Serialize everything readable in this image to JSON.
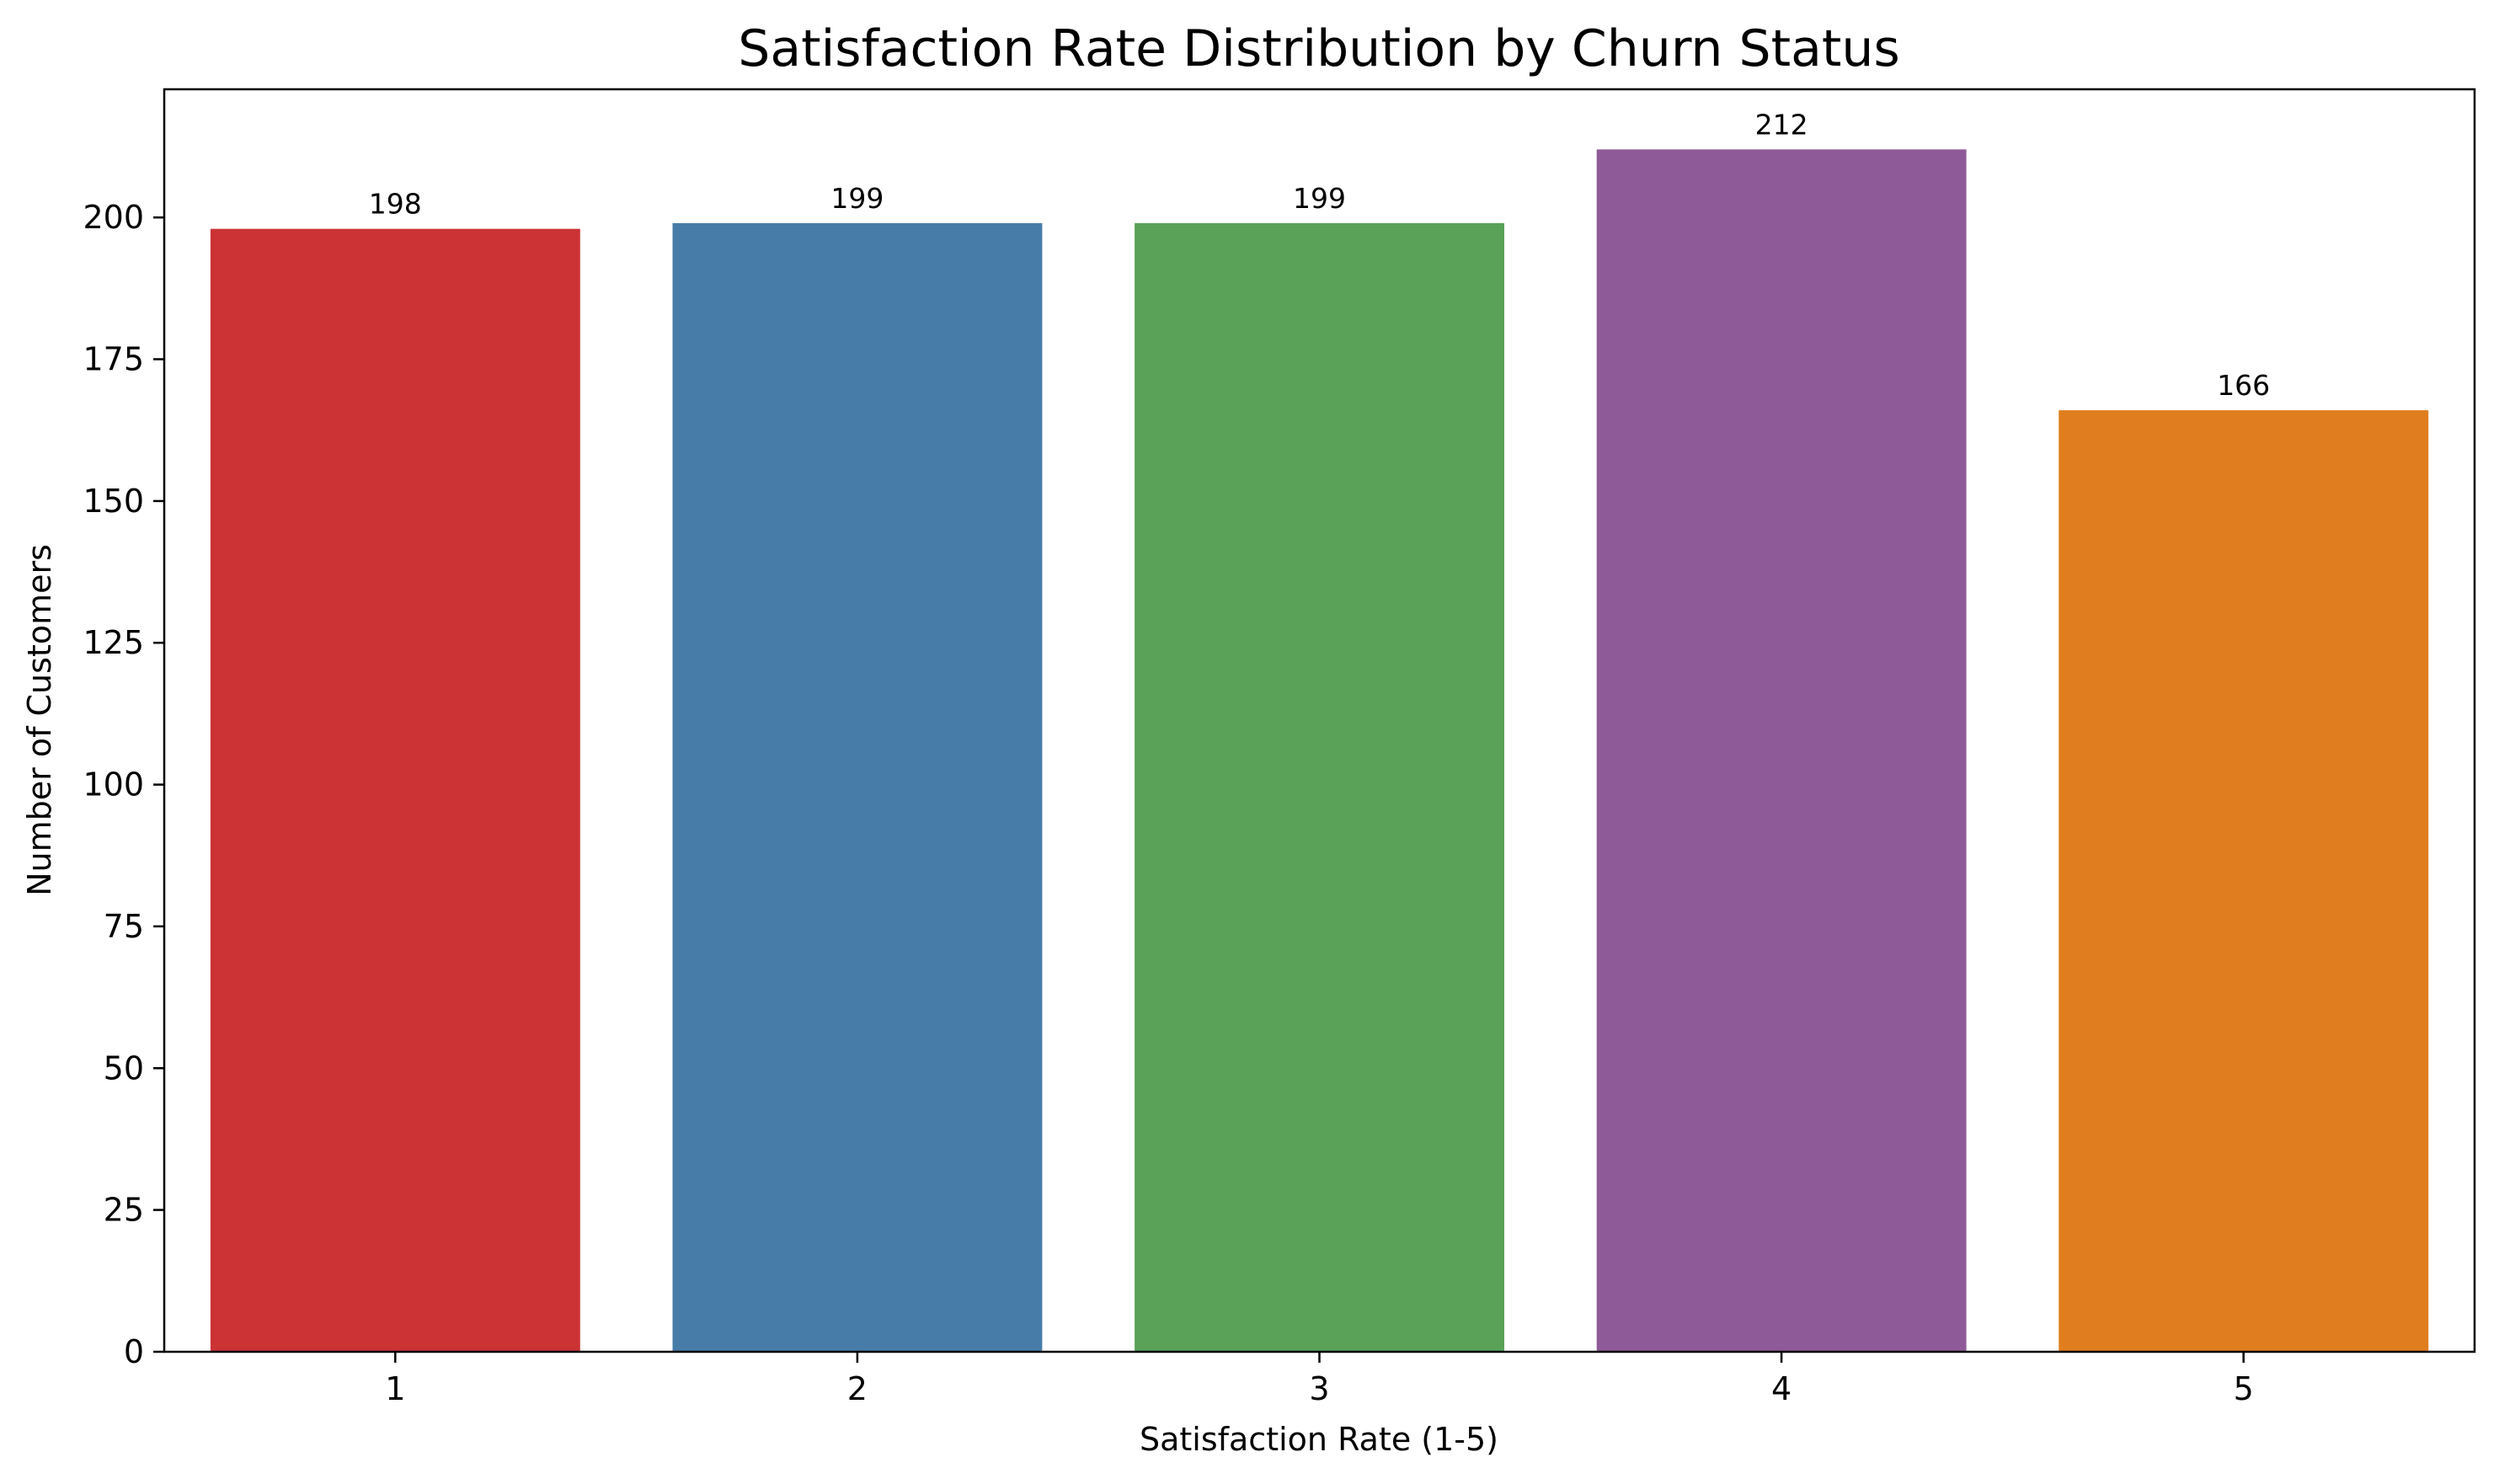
{
  "chart_data": {
    "type": "bar",
    "title": "Satisfaction Rate Distribution by Churn Status",
    "xlabel": "Satisfaction Rate (1-5)",
    "ylabel": "Number of Customers",
    "categories": [
      "1",
      "2",
      "3",
      "4",
      "5"
    ],
    "values": [
      198,
      199,
      199,
      212,
      166
    ],
    "data_labels": [
      "198",
      "199",
      "199",
      "212",
      "166"
    ],
    "colors": [
      "#cb3335",
      "#477ca8",
      "#59a257",
      "#8f5a98",
      "#e07e1f"
    ],
    "ylim": [
      0,
      222.6
    ],
    "yticks": [
      0,
      25,
      50,
      75,
      100,
      125,
      150,
      175,
      200
    ],
    "ytick_labels": [
      "0",
      "25",
      "50",
      "75",
      "100",
      "125",
      "150",
      "175",
      "200"
    ],
    "grid": false,
    "legend": "none"
  }
}
